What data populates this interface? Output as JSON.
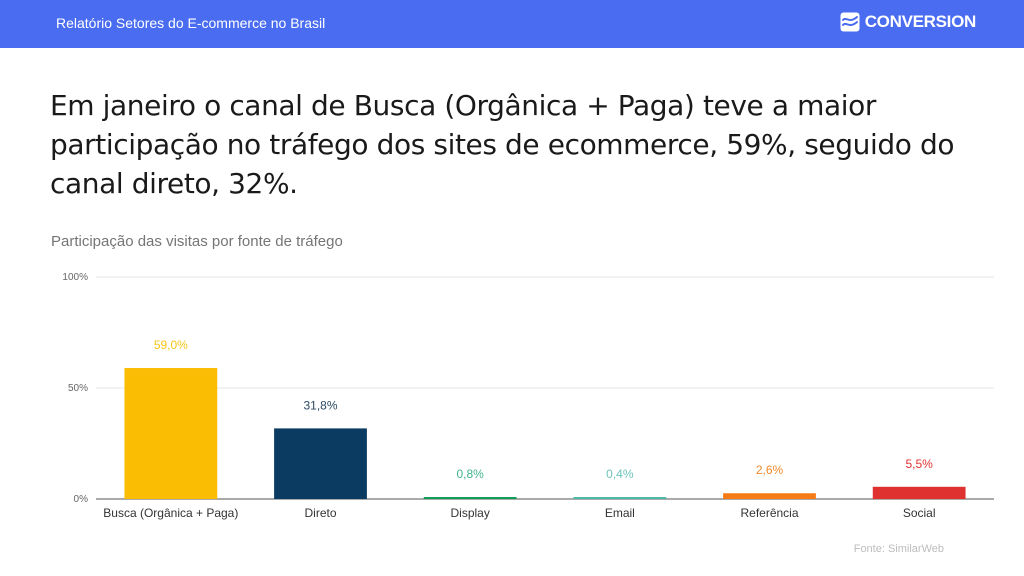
{
  "header": {
    "title": "Relatório Setores do E-commerce no Brasil",
    "brand": "CONVERSION",
    "brand_icon": "conversion-logo-icon"
  },
  "headline": "Em janeiro o canal de Busca (Orgânica + Paga) teve a maior participação no tráfego dos sites de ecommerce, 59%, seguido do canal direto, 32%.",
  "source": "Fonte: SimilarWeb",
  "chart_data": {
    "type": "bar",
    "title": "Participação das visitas por fonte de tráfego",
    "categories": [
      "Busca (Orgânica + Paga)",
      "Direto",
      "Display",
      "Email",
      "Referência",
      "Social"
    ],
    "values": [
      59.0,
      31.8,
      0.8,
      0.4,
      2.6,
      5.5
    ],
    "value_labels": [
      "59,0%",
      "31,8%",
      "0,8%",
      "0,4%",
      "2,6%",
      "5,5%"
    ],
    "colors": [
      "#fbbc04",
      "#0b3b60",
      "#0f9d58",
      "#4fb9a9",
      "#f57c14",
      "#e03131"
    ],
    "label_colors": [
      "#f5c518",
      "#2c4a66",
      "#41b48a",
      "#6cc4ba",
      "#f08a2c",
      "#e03131"
    ],
    "ylim": [
      0,
      100
    ],
    "yticks": [
      0,
      50,
      100
    ],
    "ytick_labels": [
      "0%",
      "50%",
      "100%"
    ],
    "xlabel": "",
    "ylabel": "",
    "grid": true,
    "legend": "none"
  }
}
